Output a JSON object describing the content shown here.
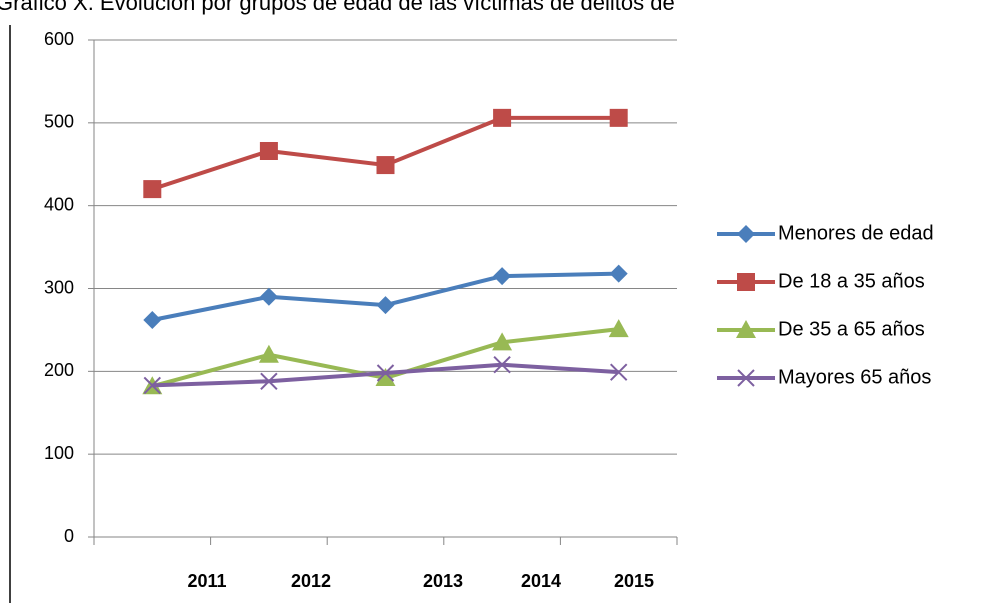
{
  "chart_data": {
    "type": "line",
    "title": "Gráfico X. Evolución por grupos de edad de las víctimas de delitos de",
    "categories": [
      "2011",
      "2012",
      "2013",
      "2014",
      "2015"
    ],
    "series": [
      {
        "name": "Menores de edad",
        "color": "#4a7ebb",
        "marker": "diamond",
        "values": [
          262,
          290,
          280,
          315,
          318
        ]
      },
      {
        "name": "De 18 a 35 años",
        "color": "#be4b48",
        "marker": "square",
        "values": [
          420,
          466,
          449,
          506,
          506
        ]
      },
      {
        "name": "De 35 a 65 años",
        "color": "#98b954",
        "marker": "triangle",
        "values": [
          182,
          220,
          192,
          235,
          251
        ]
      },
      {
        "name": "Mayores 65 años",
        "color": "#7d60a0",
        "marker": "x",
        "values": [
          183,
          188,
          198,
          208,
          199
        ]
      }
    ],
    "ylim": [
      0,
      600
    ],
    "yticks": [
      0,
      100,
      200,
      300,
      400,
      500,
      600
    ],
    "grid": true,
    "legend": "right"
  }
}
